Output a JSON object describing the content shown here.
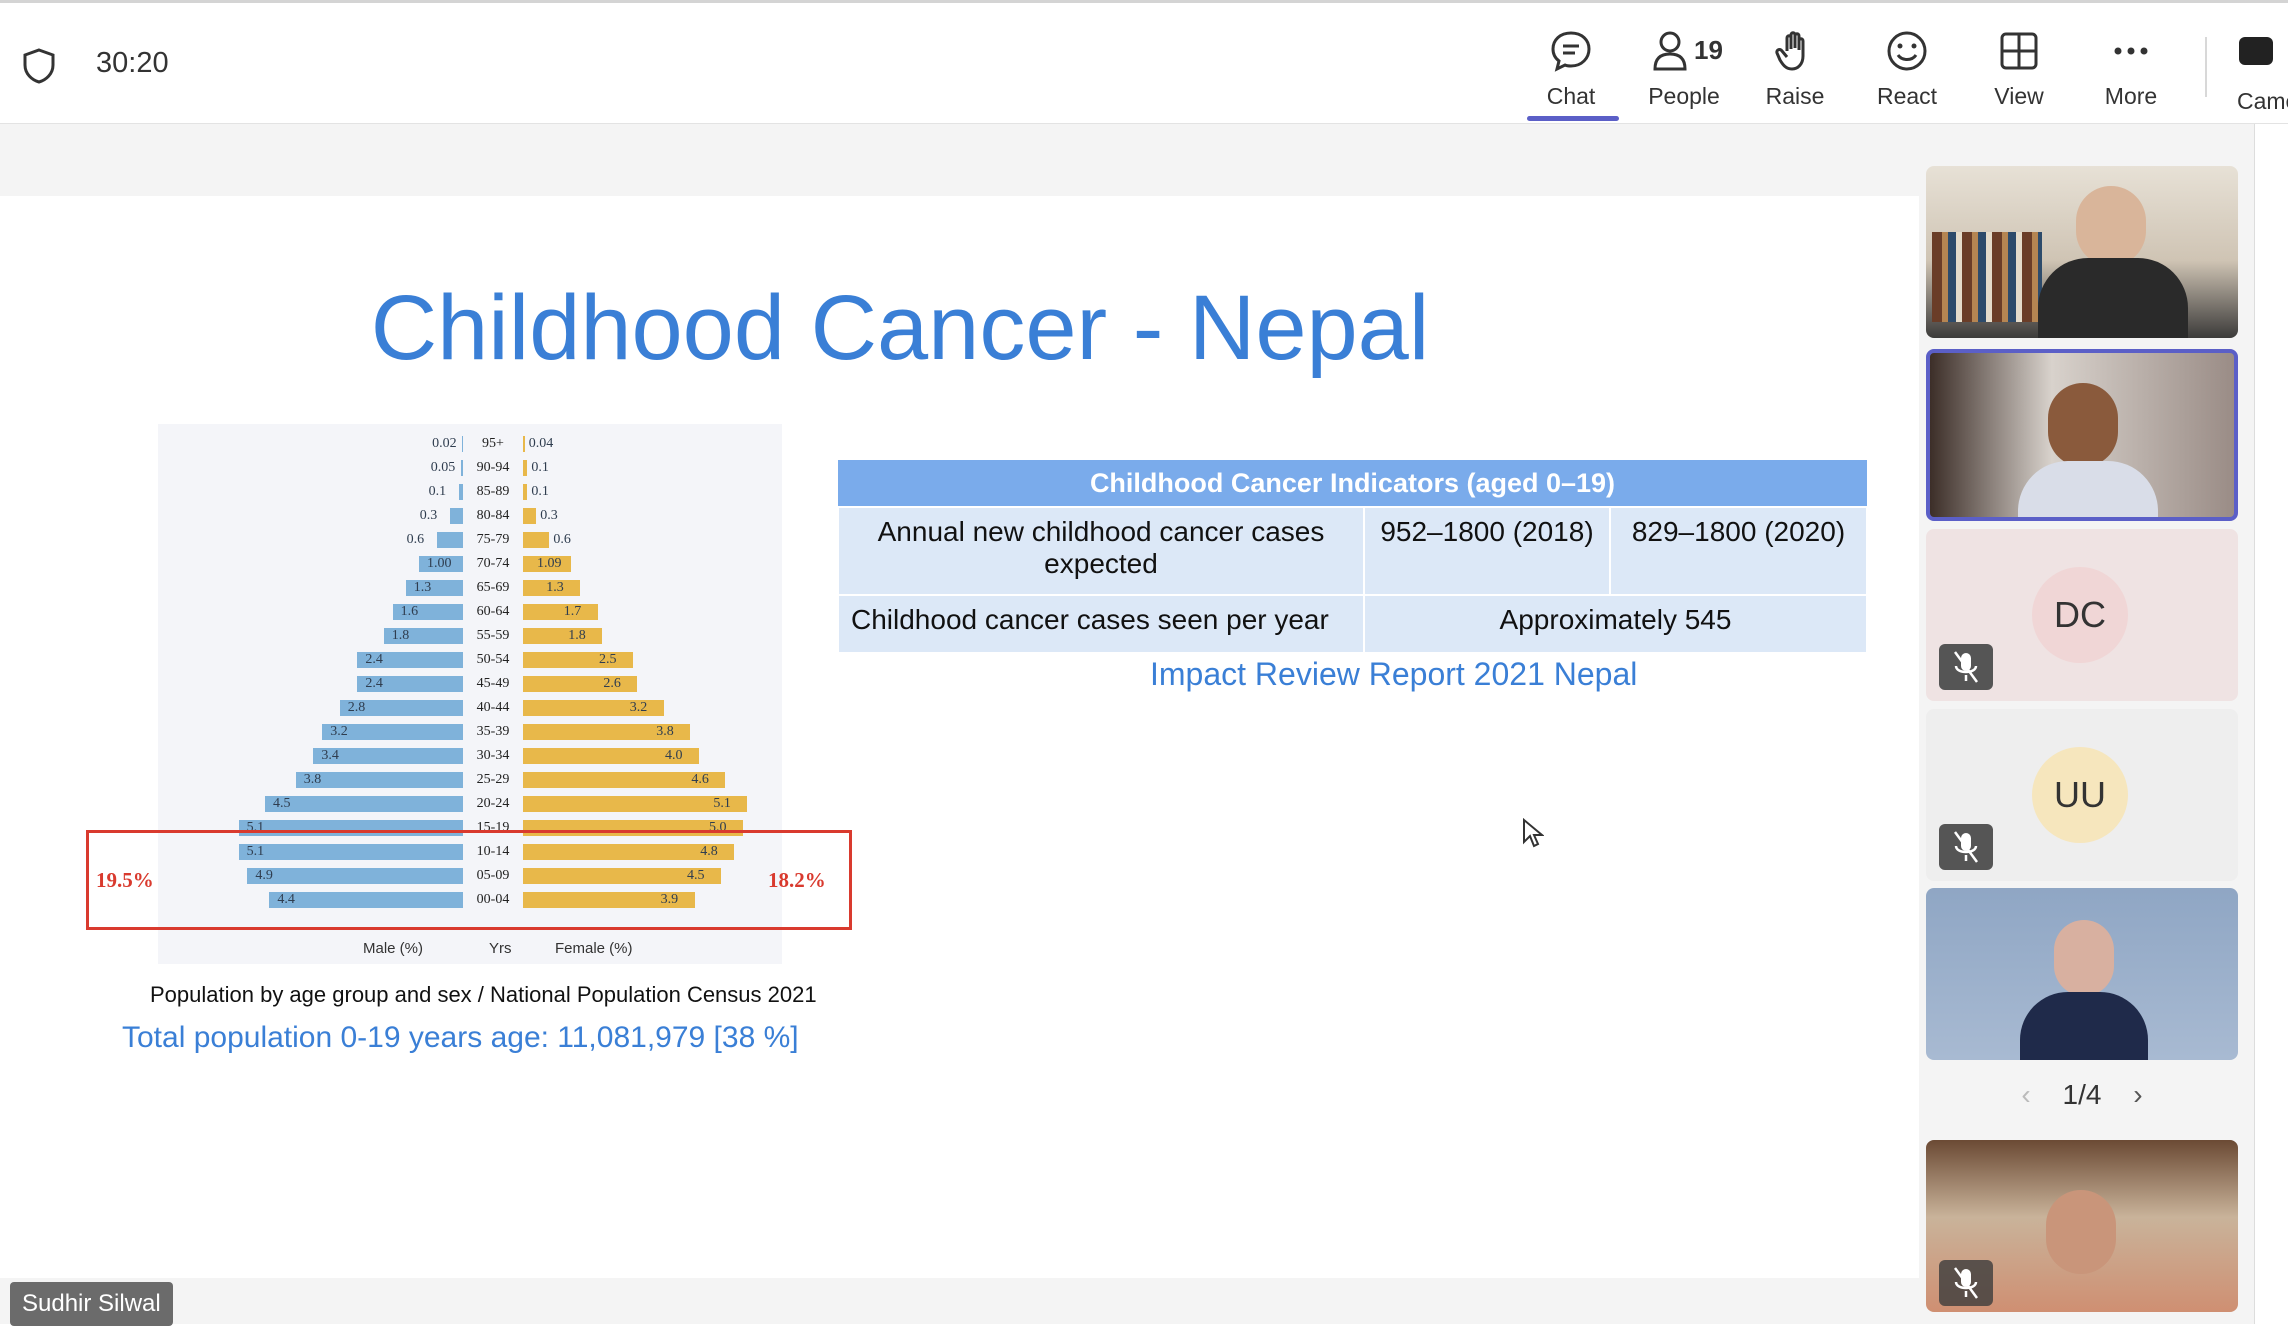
{
  "meeting": {
    "timer": "30:20",
    "toolbar": [
      {
        "id": "chat",
        "label": "Chat",
        "icon": "chat-icon"
      },
      {
        "id": "people",
        "label": "People",
        "icon": "people-icon",
        "count": "19"
      },
      {
        "id": "raise",
        "label": "Raise",
        "icon": "hand-icon"
      },
      {
        "id": "react",
        "label": "React",
        "icon": "smile-icon"
      },
      {
        "id": "view",
        "label": "View",
        "icon": "grid-icon"
      },
      {
        "id": "more",
        "label": "More",
        "icon": "more-icon"
      }
    ],
    "camera_label": "Came",
    "presenter_name": "Sudhir Silwal",
    "accent": "#5b5fc7"
  },
  "slide": {
    "title": "Childhood Cancer - Nepal",
    "pyramid": {
      "ages": [
        "95+",
        "90-94",
        "85-89",
        "80-84",
        "75-79",
        "70-74",
        "65-69",
        "60-64",
        "55-59",
        "50-54",
        "45-49",
        "40-44",
        "35-39",
        "30-34",
        "25-29",
        "20-24",
        "15-19",
        "10-14",
        "05-09",
        "00-04"
      ],
      "male_labels": [
        "0.02",
        "0.05",
        "0.1",
        "0.3",
        "0.6",
        "1.00",
        "1.3",
        "1.6",
        "1.8",
        "2.4",
        "2.4",
        "2.8",
        "3.2",
        "3.4",
        "3.8",
        "4.5",
        "5.1",
        "5.1",
        "4.9",
        "4.4"
      ],
      "female_labels": [
        "0.04",
        "0.1",
        "0.1",
        "0.3",
        "0.6",
        "1.09",
        "1.3",
        "1.7",
        "1.8",
        "2.5",
        "2.6",
        "3.2",
        "3.8",
        "4.0",
        "4.6",
        "5.1",
        "5.0",
        "4.8",
        "4.5",
        "3.9"
      ],
      "male_values": [
        0.02,
        0.05,
        0.1,
        0.3,
        0.6,
        1.0,
        1.3,
        1.6,
        1.8,
        2.4,
        2.4,
        2.8,
        3.2,
        3.4,
        3.8,
        4.5,
        5.1,
        5.1,
        4.9,
        4.4
      ],
      "female_values": [
        0.04,
        0.1,
        0.1,
        0.3,
        0.6,
        1.09,
        1.3,
        1.7,
        1.8,
        2.5,
        2.6,
        3.2,
        3.8,
        4.0,
        4.6,
        5.1,
        5.0,
        4.8,
        4.5,
        3.9
      ],
      "male_pct": "19.5%",
      "female_pct": "18.2%",
      "x_male": "Male (%)",
      "x_mid": "Yrs",
      "x_female": "Female (%)",
      "male_color": "#7fb2da",
      "female_color": "#e8b84a"
    },
    "caption": "Population by age group and sex / National Population Census 2021",
    "total": "Total population 0-19 years age: 11,081,979 [38 %]",
    "table": {
      "header": "Childhood Cancer Indicators  (aged 0–19)",
      "row1_label": "Annual new childhood cancer cases expected",
      "row1_a": "952–1800 (2018)",
      "row1_b": "829–1800 (2020)",
      "row2_label": "Childhood cancer cases seen per year",
      "row2_value": "Approximately 545"
    },
    "source": "Impact Review Report 2021 Nepal"
  },
  "participants": {
    "tiles": [
      {
        "kind": "video"
      },
      {
        "kind": "video",
        "selected": true
      },
      {
        "kind": "avatar",
        "initials": "DC",
        "muted": true,
        "bg": "#f0d6d6"
      },
      {
        "kind": "avatar",
        "initials": "UU",
        "muted": true,
        "bg": "#f6e6bd"
      },
      {
        "kind": "video"
      }
    ],
    "page": "1/4"
  }
}
